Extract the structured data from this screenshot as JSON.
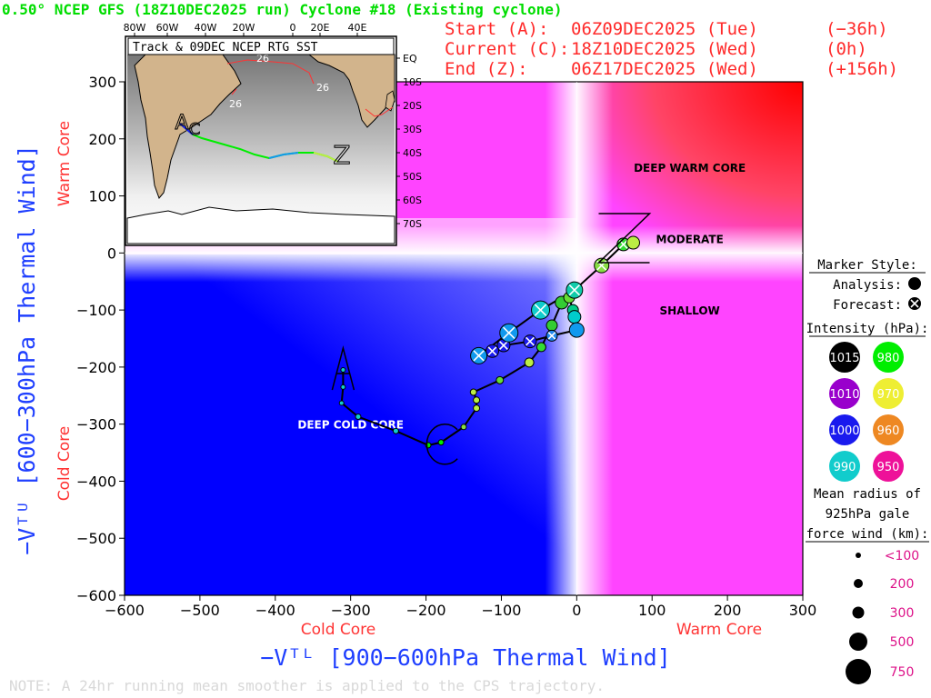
{
  "title": "0.50° NCEP GFS (18Z10DEC2025 run) Cyclone #18 (Existing cyclone)",
  "info": {
    "rows": [
      {
        "label": "Start (A):",
        "date": "06Z09DEC2025 (Tue)",
        "offset": "(−36h)"
      },
      {
        "label": "Current (C):",
        "date": "18Z10DEC2025 (Wed)",
        "offset": "(0h)"
      },
      {
        "label": "End (Z):",
        "date": "06Z17DEC2025 (Wed)",
        "offset": "(+156h)"
      }
    ]
  },
  "colors": {
    "title": "#00dd00",
    "info": "#ff2a2a",
    "axis_title": "#1f3fff",
    "core_label": "#ff3333",
    "warm": "#ff0000",
    "cold": "#0000ff",
    "track": "#000000"
  },
  "note": "NOTE:  A 24hr running mean smoother is applied to the CPS trajectory.",
  "legend": {
    "marker_style_title": "Marker Style:",
    "analysis_label": "Analysis:",
    "forecast_label": "Forecast:",
    "intensity_title": "Intensity (hPa):",
    "intensity": [
      {
        "label": "1015",
        "color": "#000000"
      },
      {
        "label": "980",
        "color": "#00ee00"
      },
      {
        "label": "1010",
        "color": "#9900cc"
      },
      {
        "label": "970",
        "color": "#eeee33"
      },
      {
        "label": "1000",
        "color": "#1a1aee"
      },
      {
        "label": "960",
        "color": "#ee8822"
      },
      {
        "label": "990",
        "color": "#11cccc"
      },
      {
        "label": "950",
        "color": "#ee1199"
      }
    ],
    "radius_title": [
      "Mean radius of",
      "925hPa gale",
      "force wind (km):"
    ],
    "radii": [
      {
        "label": "<100",
        "r": 3
      },
      {
        "label": "200",
        "r": 5
      },
      {
        "label": "300",
        "r": 6.5
      },
      {
        "label": "500",
        "r": 10
      },
      {
        "label": "750",
        "r": 14
      }
    ]
  },
  "inset": {
    "title": "Track & 09DEC NCEP RTG SST",
    "lon_labels": [
      "80W",
      "60W",
      "40W",
      "20W",
      "0",
      "20E",
      "40E"
    ],
    "lat_labels": [
      "EQ",
      "10S",
      "20S",
      "30S",
      "40S",
      "50S",
      "60S",
      "70S"
    ],
    "contour_labels": [
      "26",
      "26",
      "26"
    ],
    "letters": [
      "A",
      "C",
      "Z"
    ]
  },
  "chart_data": {
    "type": "scatter",
    "xlabel": "−Vᵀᴸ [900−600hPa Thermal Wind]",
    "ylabel": "−Vᵀᵁ [600−300hPa Thermal Wind]",
    "xlim": [
      -600,
      300
    ],
    "ylim": [
      -600,
      300
    ],
    "xticks": [
      -600,
      -500,
      -400,
      -300,
      -200,
      -100,
      0,
      100,
      200,
      300
    ],
    "yticks": [
      -600,
      -500,
      -400,
      -300,
      -200,
      -100,
      0,
      100,
      200,
      300
    ],
    "x_core_labels": {
      "cold": "Cold Core",
      "warm": "Warm Core"
    },
    "y_core_labels": {
      "cold": "Cold Core",
      "warm": "Warm Core"
    },
    "region_labels": [
      {
        "text": "DEEP WARM CORE",
        "x": 150,
        "y": 150
      },
      {
        "text": "MODERATE",
        "x": 150,
        "y": 25
      },
      {
        "text": "SHALLOW",
        "x": 150,
        "y": -100
      },
      {
        "text": "DEEP COLD CORE",
        "x": -300,
        "y": -300
      }
    ],
    "markers": {
      "start": "A",
      "current": "C",
      "end": "Z"
    },
    "track": [
      {
        "x": -310,
        "y": -205,
        "kind": "analysis",
        "color": "#11cccc",
        "r": 2.5
      },
      {
        "x": -310,
        "y": -235,
        "kind": "analysis",
        "color": "#11cccc",
        "r": 2.5
      },
      {
        "x": -312,
        "y": -263,
        "kind": "analysis",
        "color": "#11cccc",
        "r": 2.5
      },
      {
        "x": -290,
        "y": -287,
        "kind": "analysis",
        "color": "#11cccc",
        "r": 3
      },
      {
        "x": -240,
        "y": -312,
        "kind": "analysis",
        "color": "#11cccc",
        "r": 3
      },
      {
        "x": -197,
        "y": -337,
        "kind": "analysis",
        "color": "#00ee00",
        "r": 3
      },
      {
        "x": -180,
        "y": -332,
        "kind": "analysis",
        "color": "#00ee00",
        "r": 3
      },
      {
        "x": -150,
        "y": -305,
        "kind": "analysis",
        "color": "#88dd44",
        "r": 3
      },
      {
        "x": -133,
        "y": -272,
        "kind": "analysis",
        "color": "#bbee44",
        "r": 3.5
      },
      {
        "x": -133,
        "y": -258,
        "kind": "analysis",
        "color": "#bbee44",
        "r": 3.5
      },
      {
        "x": -137,
        "y": -244,
        "kind": "analysis",
        "color": "#bbee44",
        "r": 3.5
      },
      {
        "x": -102,
        "y": -223,
        "kind": "analysis",
        "color": "#66dd33",
        "r": 4
      },
      {
        "x": -63,
        "y": -192,
        "kind": "analysis",
        "color": "#bbee44",
        "r": 5
      },
      {
        "x": -47,
        "y": -165,
        "kind": "analysis",
        "color": "#33dd33",
        "r": 5
      },
      {
        "x": -33,
        "y": -127,
        "kind": "analysis",
        "color": "#33cc33",
        "r": 6
      },
      {
        "x": -20,
        "y": -87,
        "kind": "analysis",
        "color": "#33cc33",
        "r": 7
      },
      {
        "x": -10,
        "y": -78,
        "kind": "analysis",
        "color": "#66dd33",
        "r": 6
      },
      {
        "x": -5,
        "y": -100,
        "kind": "analysis",
        "color": "#00cc88",
        "r": 6
      },
      {
        "x": -3,
        "y": -112,
        "kind": "analysis",
        "color": "#00cccc",
        "r": 7
      },
      {
        "x": 0,
        "y": -135,
        "kind": "analysis",
        "color": "#1199ee",
        "r": 8
      },
      {
        "x": -33,
        "y": -145,
        "kind": "forecast",
        "color": "#2288ee",
        "r": 6
      },
      {
        "x": -62,
        "y": -155,
        "kind": "forecast",
        "color": "#1a1aee",
        "r": 7
      },
      {
        "x": -97,
        "y": -162,
        "kind": "forecast",
        "color": "#1a1aee",
        "r": 7
      },
      {
        "x": -112,
        "y": -172,
        "kind": "forecast",
        "color": "#1a1aee",
        "r": 7
      },
      {
        "x": -130,
        "y": -180,
        "kind": "forecast",
        "color": "#1199ee",
        "r": 9
      },
      {
        "x": -90,
        "y": -140,
        "kind": "forecast",
        "color": "#1199ee",
        "r": 10
      },
      {
        "x": -48,
        "y": -100,
        "kind": "forecast",
        "color": "#11cccc",
        "r": 10
      },
      {
        "x": -3,
        "y": -65,
        "kind": "forecast",
        "color": "#11ccaa",
        "r": 9
      },
      {
        "x": 33,
        "y": -22,
        "kind": "forecast",
        "color": "#88dd44",
        "r": 8
      },
      {
        "x": 62,
        "y": 15,
        "kind": "forecast",
        "color": "#33dd33",
        "r": 7
      },
      {
        "x": 75,
        "y": 18,
        "kind": "analysis",
        "color": "#bbee44",
        "r": 7
      }
    ]
  }
}
